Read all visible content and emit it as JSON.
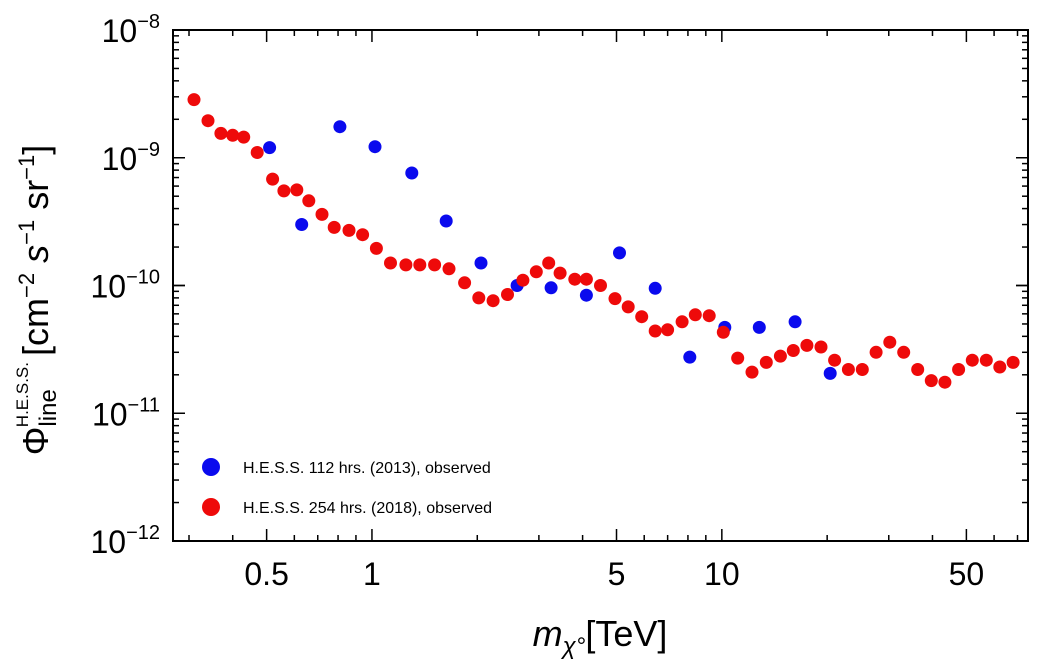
{
  "chart_data": {
    "type": "scatter",
    "title": "",
    "xlabel": {
      "var": "m",
      "sub": "χ°",
      "unit": "[TeV]"
    },
    "ylabel": {
      "sym": "Φ",
      "sub": "line",
      "sup": "H.E.S.S.",
      "unit": "[cm",
      "unit_e1": "−2",
      "unit_s": " s",
      "unit_e2": "−1",
      "unit_sr": " sr",
      "unit_e3": "−1",
      "unit_close": "]"
    },
    "xscale": "log",
    "yscale": "log",
    "xlim": [
      0.27,
      75
    ],
    "ylim": [
      1e-12,
      1e-08
    ],
    "xticks": [
      {
        "value": 0.5,
        "label": "0.5"
      },
      {
        "value": 1,
        "label": "1"
      },
      {
        "value": 5,
        "label": "5"
      },
      {
        "value": 10,
        "label": "10"
      },
      {
        "value": 50,
        "label": "50"
      }
    ],
    "yticks": [
      {
        "value": 1e-08,
        "base": "10",
        "exp": "−8"
      },
      {
        "value": 1e-09,
        "base": "10",
        "exp": "−9"
      },
      {
        "value": 1e-10,
        "base": "10",
        "exp": "−10"
      },
      {
        "value": 1e-11,
        "base": "10",
        "exp": "−11"
      },
      {
        "value": 1e-12,
        "base": "10",
        "exp": "−12"
      }
    ],
    "grid": false,
    "legend_position": "bottom-left",
    "series": [
      {
        "name": "H.E.S.S. 112 hrs. (2013), observed",
        "color": "#0a0aee",
        "points": [
          [
            0.51,
            1.2e-09
          ],
          [
            0.63,
            3e-10
          ],
          [
            0.81,
            1.75e-09
          ],
          [
            1.02,
            1.22e-09
          ],
          [
            1.3,
            7.6e-10
          ],
          [
            1.63,
            3.2e-10
          ],
          [
            2.05,
            1.5e-10
          ],
          [
            2.6,
            1e-10
          ],
          [
            3.25,
            9.6e-11
          ],
          [
            4.1,
            8.4e-11
          ],
          [
            5.1,
            1.8e-10
          ],
          [
            6.45,
            9.5e-11
          ],
          [
            8.1,
            2.75e-11
          ],
          [
            10.2,
            4.7e-11
          ],
          [
            12.8,
            4.7e-11
          ],
          [
            16.2,
            5.2e-11
          ],
          [
            20.4,
            2.05e-11
          ]
        ]
      },
      {
        "name": "H.E.S.S. 254 hrs. (2018), observed",
        "color": "#ee0a0a",
        "points": [
          [
            0.31,
            2.85e-09
          ],
          [
            0.34,
            1.95e-09
          ],
          [
            0.37,
            1.55e-09
          ],
          [
            0.4,
            1.5e-09
          ],
          [
            0.43,
            1.45e-09
          ],
          [
            0.47,
            1.1e-09
          ],
          [
            0.52,
            6.8e-10
          ],
          [
            0.56,
            5.5e-10
          ],
          [
            0.61,
            5.6e-10
          ],
          [
            0.66,
            4.6e-10
          ],
          [
            0.72,
            3.6e-10
          ],
          [
            0.78,
            2.85e-10
          ],
          [
            0.86,
            2.7e-10
          ],
          [
            0.94,
            2.5e-10
          ],
          [
            1.03,
            1.95e-10
          ],
          [
            1.13,
            1.5e-10
          ],
          [
            1.25,
            1.45e-10
          ],
          [
            1.37,
            1.45e-10
          ],
          [
            1.51,
            1.45e-10
          ],
          [
            1.66,
            1.35e-10
          ],
          [
            1.84,
            1.05e-10
          ],
          [
            2.02,
            8e-11
          ],
          [
            2.22,
            7.6e-11
          ],
          [
            2.44,
            8.5e-11
          ],
          [
            2.7,
            1.1e-10
          ],
          [
            2.95,
            1.28e-10
          ],
          [
            3.2,
            1.5e-10
          ],
          [
            3.45,
            1.25e-10
          ],
          [
            3.8,
            1.12e-10
          ],
          [
            4.1,
            1.12e-10
          ],
          [
            4.5,
            1e-10
          ],
          [
            4.95,
            7.9e-11
          ],
          [
            5.4,
            6.8e-11
          ],
          [
            5.9,
            5.7e-11
          ],
          [
            6.45,
            4.4e-11
          ],
          [
            7.0,
            4.5e-11
          ],
          [
            7.7,
            5.2e-11
          ],
          [
            8.4,
            5.9e-11
          ],
          [
            9.2,
            5.8e-11
          ],
          [
            10.1,
            4.3e-11
          ],
          [
            11.1,
            2.7e-11
          ],
          [
            12.2,
            2.1e-11
          ],
          [
            13.4,
            2.5e-11
          ],
          [
            14.7,
            2.8e-11
          ],
          [
            16.0,
            3.1e-11
          ],
          [
            17.5,
            3.4e-11
          ],
          [
            19.2,
            3.3e-11
          ],
          [
            21.0,
            2.6e-11
          ],
          [
            23.0,
            2.2e-11
          ],
          [
            25.2,
            2.2e-11
          ],
          [
            27.6,
            3e-11
          ],
          [
            30.2,
            3.6e-11
          ],
          [
            33.1,
            3e-11
          ],
          [
            36.3,
            2.2e-11
          ],
          [
            39.7,
            1.8e-11
          ],
          [
            43.4,
            1.75e-11
          ],
          [
            47.5,
            2.2e-11
          ],
          [
            52.0,
            2.6e-11
          ],
          [
            57.0,
            2.6e-11
          ],
          [
            62.3,
            2.3e-11
          ],
          [
            68.0,
            2.5e-11
          ]
        ]
      }
    ]
  }
}
